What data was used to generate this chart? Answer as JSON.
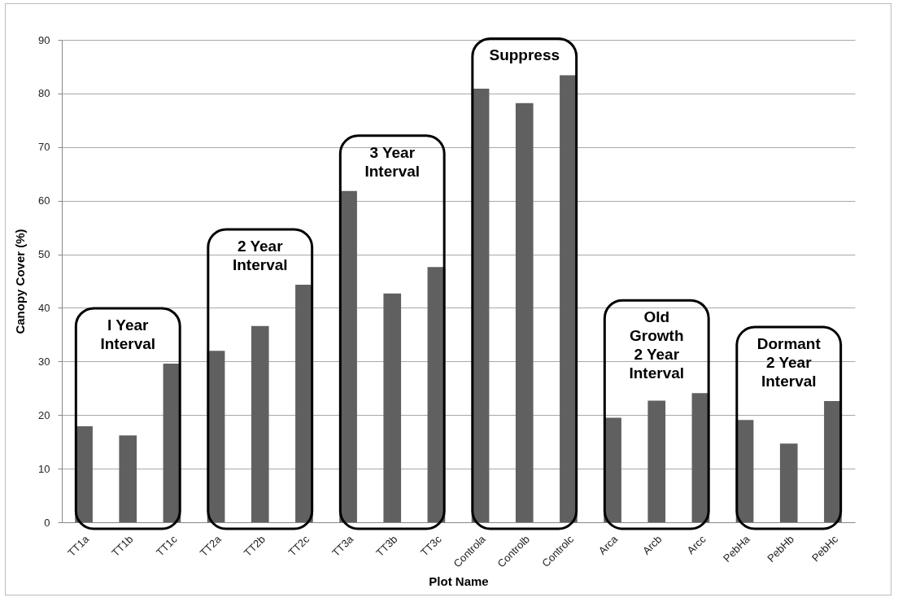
{
  "chart_data": {
    "type": "bar",
    "xlabel": "Plot Name",
    "ylabel": "Canopy Cover (%)",
    "categories": [
      "TT1a",
      "TT1b",
      "TT1c",
      "TT2a",
      "TT2b",
      "TT2c",
      "TT3a",
      "TT3b",
      "TT3c",
      "Controla",
      "Controlb",
      "Controlc",
      "Arca",
      "Arcb",
      "Arcc",
      "PebHa",
      "PebHb",
      "PebHc"
    ],
    "values": [
      17.9,
      16.2,
      29.6,
      32.0,
      36.6,
      44.3,
      61.8,
      42.7,
      47.6,
      80.9,
      78.2,
      83.4,
      19.5,
      22.7,
      24.1,
      19.1,
      14.7,
      22.6
    ],
    "color": "#606060",
    "ylim": [
      0,
      90
    ],
    "yticks": [
      0,
      10,
      20,
      30,
      40,
      50,
      60,
      70,
      80,
      90
    ],
    "grid": "y",
    "annotations": [
      "I Year\nInterval",
      "2 Year\nInterval",
      "3 Year\nInterval",
      "Suppress",
      "Old\nGrowth\n2 Year\nInterval",
      "Dormant\n2 Year\nInterval"
    ]
  }
}
